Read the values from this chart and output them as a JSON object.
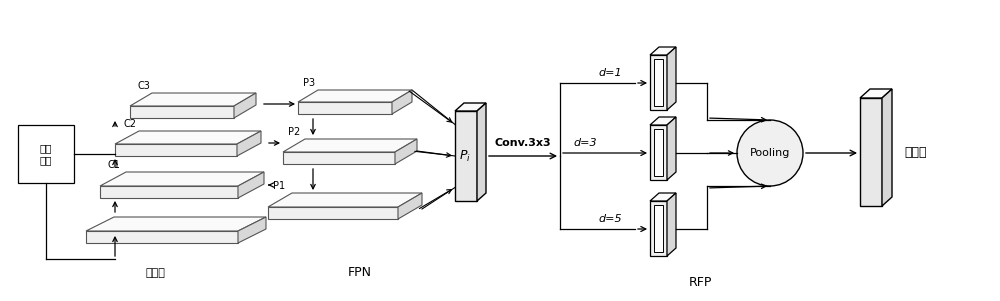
{
  "bg_color": "#ffffff",
  "text_color": "#000000",
  "label_input": "输入\n图像",
  "label_downsample": "下采样",
  "label_fpn": "FPN",
  "label_rfp": "RFP",
  "label_pooling": "Pooling",
  "label_output": "特征图",
  "label_conv": "Conv.3x3",
  "label_pi": "$P_i$",
  "label_c1": "C1",
  "label_c2": "C2",
  "label_c3": "C3",
  "label_p1": "P1",
  "label_p2": "P2",
  "label_p3": "P3",
  "label_d1": "d=1",
  "label_d3": "d=3",
  "label_d5": "d=5",
  "plate_color": "#f0f0f0",
  "plate_edge": "#555555",
  "plate_linewidth": 0.8
}
